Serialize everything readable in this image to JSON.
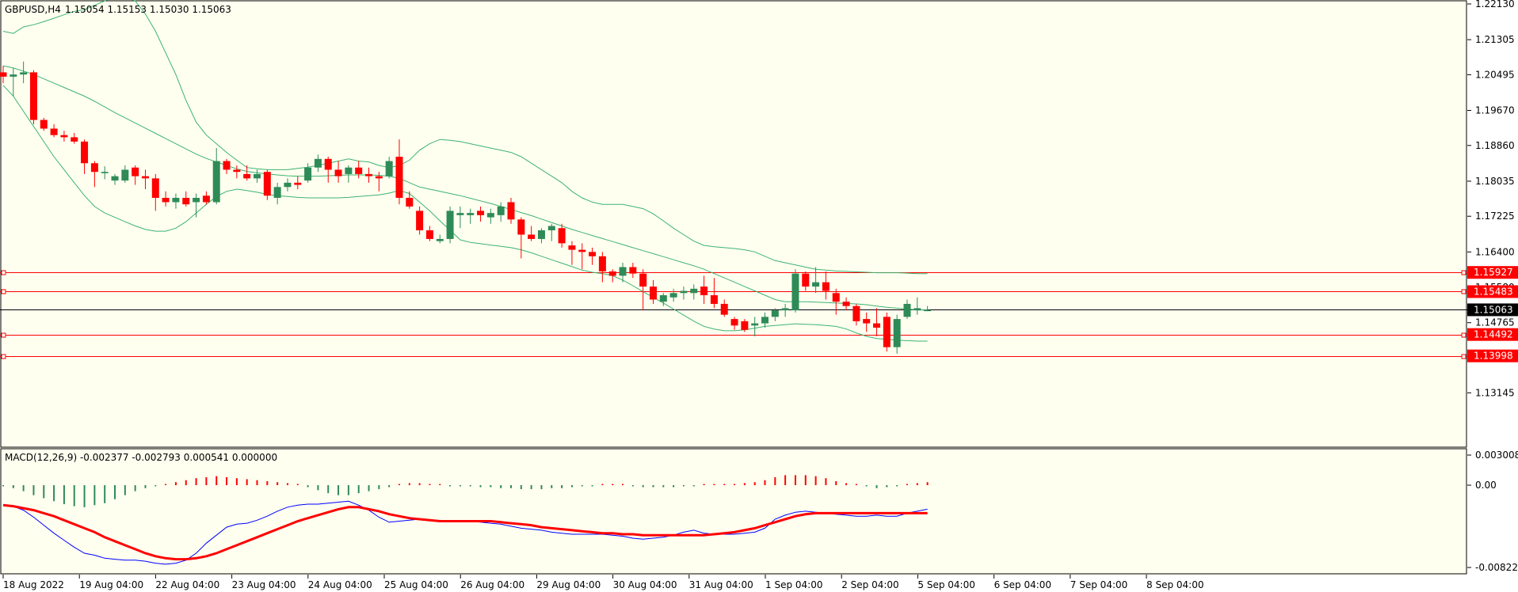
{
  "colors": {
    "background": "#fffff0",
    "bull": "#2e8b57",
    "bear": "#ff0000",
    "band": "#3cb371",
    "macd_line": "#0000ff",
    "signal_line": "#ff0000",
    "level": "#ff0000",
    "price_line": "#000000"
  },
  "header": {
    "symbol": "GBPUSD,H4",
    "ohlc": "1.15054 1.15153 1.15030 1.15063"
  },
  "macd_header": {
    "label": "MACD(12,26,9) -0.002377 -0.002793 0.000541 0.000000"
  },
  "chart_data": [
    {
      "type": "candlestick",
      "title": "GBPUSD,H4",
      "ylim": [
        1.122,
        1.2213
      ],
      "y_ticks": [
        "1.22130",
        "1.21305",
        "1.20495",
        "1.19670",
        "1.18860",
        "1.18035",
        "1.17225",
        "1.16400",
        "1.15580",
        "1.14765",
        "1.13145"
      ],
      "x_ticks": [
        "18 Aug 2022",
        "19 Aug 04:00",
        "22 Aug 04:00",
        "23 Aug 04:00",
        "24 Aug 04:00",
        "25 Aug 04:00",
        "26 Aug 04:00",
        "29 Aug 04:00",
        "30 Aug 04:00",
        "31 Aug 04:00",
        "1 Sep 04:00",
        "2 Sep 04:00",
        "5 Sep 04:00",
        "6 Sep 04:00",
        "7 Sep 04:00",
        "8 Sep 04:00"
      ],
      "current_price": "1.15063",
      "levels": [
        "1.15927",
        "1.15483",
        "1.14492",
        "1.13998"
      ],
      "candles": [
        [
          1.2055,
          1.207,
          1.203,
          1.2045
        ],
        [
          1.2045,
          1.2065,
          1.2,
          1.205
        ],
        [
          1.205,
          1.208,
          1.203,
          1.2055
        ],
        [
          1.2055,
          1.206,
          1.1935,
          1.1945
        ],
        [
          1.1945,
          1.195,
          1.192,
          1.1925
        ],
        [
          1.1925,
          1.1935,
          1.1905,
          1.191
        ],
        [
          1.191,
          1.192,
          1.1895,
          1.1905
        ],
        [
          1.1905,
          1.1915,
          1.189,
          1.1895
        ],
        [
          1.1895,
          1.19,
          1.182,
          1.1845
        ],
        [
          1.1845,
          1.185,
          1.179,
          1.1825
        ],
        [
          1.1822,
          1.1838,
          1.1808,
          1.1825
        ],
        [
          1.1805,
          1.182,
          1.1795,
          1.1815
        ],
        [
          1.1805,
          1.184,
          1.18,
          1.183
        ],
        [
          1.1835,
          1.184,
          1.1795,
          1.1815
        ],
        [
          1.1815,
          1.183,
          1.1785,
          1.181
        ],
        [
          1.181,
          1.182,
          1.1735,
          1.1765
        ],
        [
          1.1765,
          1.178,
          1.1745,
          1.1755
        ],
        [
          1.1755,
          1.1775,
          1.174,
          1.1765
        ],
        [
          1.1765,
          1.178,
          1.1745,
          1.175
        ],
        [
          1.1755,
          1.1775,
          1.172,
          1.1765
        ],
        [
          1.177,
          1.178,
          1.175,
          1.1755
        ],
        [
          1.1755,
          1.188,
          1.175,
          1.185
        ],
        [
          1.185,
          1.1855,
          1.182,
          1.183
        ],
        [
          1.183,
          1.184,
          1.181,
          1.1825
        ],
        [
          1.182,
          1.184,
          1.1805,
          1.181
        ],
        [
          1.181,
          1.183,
          1.18,
          1.182
        ],
        [
          1.1825,
          1.183,
          1.176,
          1.177
        ],
        [
          1.1765,
          1.18,
          1.175,
          1.179
        ],
        [
          1.179,
          1.181,
          1.178,
          1.18
        ],
        [
          1.18,
          1.1815,
          1.1785,
          1.1795
        ],
        [
          1.1805,
          1.1845,
          1.18,
          1.1835
        ],
        [
          1.1835,
          1.1865,
          1.1825,
          1.1855
        ],
        [
          1.1855,
          1.186,
          1.18,
          1.183
        ],
        [
          1.183,
          1.185,
          1.18,
          1.1815
        ],
        [
          1.182,
          1.184,
          1.18,
          1.1835
        ],
        [
          1.1835,
          1.185,
          1.181,
          1.182
        ],
        [
          1.182,
          1.1835,
          1.18,
          1.1815
        ],
        [
          1.1815,
          1.1825,
          1.178,
          1.181
        ],
        [
          1.1815,
          1.186,
          1.181,
          1.185
        ],
        [
          1.186,
          1.19,
          1.175,
          1.1765
        ],
        [
          1.1765,
          1.178,
          1.174,
          1.1745
        ],
        [
          1.1735,
          1.1745,
          1.168,
          1.169
        ],
        [
          1.169,
          1.17,
          1.1665,
          1.167
        ],
        [
          1.1665,
          1.168,
          1.166,
          1.167
        ],
        [
          1.167,
          1.1745,
          1.166,
          1.1735
        ],
        [
          1.1725,
          1.1745,
          1.1695,
          1.173
        ],
        [
          1.1725,
          1.174,
          1.1705,
          1.173
        ],
        [
          1.1735,
          1.1745,
          1.171,
          1.1725
        ],
        [
          1.172,
          1.174,
          1.1705,
          1.173
        ],
        [
          1.1725,
          1.1755,
          1.171,
          1.1745
        ],
        [
          1.1755,
          1.1765,
          1.1705,
          1.1715
        ],
        [
          1.1715,
          1.172,
          1.1625,
          1.168
        ],
        [
          1.168,
          1.17,
          1.1665,
          1.167
        ],
        [
          1.167,
          1.1695,
          1.166,
          1.169
        ],
        [
          1.169,
          1.1705,
          1.1665,
          1.17
        ],
        [
          1.1695,
          1.1705,
          1.165,
          1.166
        ],
        [
          1.1655,
          1.1665,
          1.161,
          1.1645
        ],
        [
          1.1645,
          1.166,
          1.16,
          1.164
        ],
        [
          1.164,
          1.165,
          1.161,
          1.163
        ],
        [
          1.163,
          1.164,
          1.157,
          1.1595
        ],
        [
          1.1595,
          1.16,
          1.157,
          1.1585
        ],
        [
          1.1585,
          1.1615,
          1.157,
          1.1605
        ],
        [
          1.1605,
          1.1615,
          1.158,
          1.159
        ],
        [
          1.159,
          1.16,
          1.1505,
          1.156
        ],
        [
          1.156,
          1.1575,
          1.152,
          1.153
        ],
        [
          1.1525,
          1.1545,
          1.1515,
          1.154
        ],
        [
          1.1535,
          1.1555,
          1.1525,
          1.1545
        ],
        [
          1.1545,
          1.156,
          1.153,
          1.155
        ],
        [
          1.1545,
          1.1565,
          1.153,
          1.1555
        ],
        [
          1.156,
          1.1585,
          1.152,
          1.154
        ],
        [
          1.154,
          1.158,
          1.151,
          1.152
        ],
        [
          1.152,
          1.153,
          1.149,
          1.1495
        ],
        [
          1.1485,
          1.149,
          1.146,
          1.147
        ],
        [
          1.148,
          1.1485,
          1.1455,
          1.146
        ],
        [
          1.147,
          1.149,
          1.1445,
          1.1475
        ],
        [
          1.1475,
          1.15,
          1.1465,
          1.149
        ],
        [
          1.149,
          1.151,
          1.148,
          1.1505
        ],
        [
          1.1505,
          1.152,
          1.149,
          1.151
        ],
        [
          1.1505,
          1.16,
          1.15,
          1.159
        ],
        [
          1.159,
          1.1595,
          1.155,
          1.156
        ],
        [
          1.156,
          1.1605,
          1.1545,
          1.157
        ],
        [
          1.157,
          1.1595,
          1.153,
          1.155
        ],
        [
          1.1545,
          1.1555,
          1.1495,
          1.1525
        ],
        [
          1.1525,
          1.1535,
          1.1505,
          1.1515
        ],
        [
          1.1515,
          1.152,
          1.147,
          1.148
        ],
        [
          1.1485,
          1.15,
          1.1455,
          1.1475
        ],
        [
          1.1475,
          1.151,
          1.1445,
          1.1465
        ],
        [
          1.149,
          1.15,
          1.141,
          1.142
        ],
        [
          1.142,
          1.1495,
          1.1405,
          1.1485
        ],
        [
          1.149,
          1.153,
          1.1485,
          1.152
        ],
        [
          1.1505,
          1.1535,
          1.1495,
          1.151
        ],
        [
          1.1505,
          1.1515,
          1.1503,
          1.1506
        ]
      ],
      "bollinger": {
        "upper": [
          1.215,
          1.2145,
          1.216,
          1.2165,
          1.2172,
          1.218,
          1.2188,
          1.2196,
          1.22,
          1.221,
          1.222,
          1.223,
          1.223,
          1.222,
          1.219,
          1.215,
          1.21,
          1.205,
          1.199,
          1.194,
          1.191,
          1.189,
          1.187,
          1.1852,
          1.1835,
          1.1832,
          1.183,
          1.183,
          1.183,
          1.1833,
          1.1836,
          1.184,
          1.1845,
          1.185,
          1.1855,
          1.185,
          1.1848,
          1.184,
          1.1835,
          1.184,
          1.1852,
          1.1875,
          1.189,
          1.19,
          1.1898,
          1.1895,
          1.189,
          1.1885,
          1.188,
          1.1875,
          1.187,
          1.186,
          1.1845,
          1.183,
          1.1815,
          1.18,
          1.178,
          1.1765,
          1.1755,
          1.175,
          1.175,
          1.175,
          1.1745,
          1.174,
          1.1728,
          1.1712,
          1.1695,
          1.168,
          1.1665,
          1.1655,
          1.1652,
          1.165,
          1.1648,
          1.1645,
          1.164,
          1.163,
          1.162,
          1.1615,
          1.161,
          1.1605,
          1.16,
          1.1598,
          1.1596,
          1.1595,
          1.1594,
          1.1593,
          1.1592,
          1.1592,
          1.1592,
          1.1591,
          1.159,
          1.159
        ],
        "middle": [
          1.207,
          1.2065,
          1.2058,
          1.205,
          1.204,
          1.203,
          1.202,
          1.201,
          1.2,
          1.1988,
          1.1975,
          1.1962,
          1.195,
          1.1938,
          1.1926,
          1.1914,
          1.1902,
          1.189,
          1.1878,
          1.1866,
          1.1856,
          1.1848,
          1.184,
          1.1832,
          1.1826,
          1.1823,
          1.182,
          1.1818,
          1.1816,
          1.1815,
          1.1815,
          1.1815,
          1.1816,
          1.1817,
          1.1818,
          1.1818,
          1.1818,
          1.1817,
          1.1815,
          1.181,
          1.18,
          1.179,
          1.1785,
          1.178,
          1.1775,
          1.177,
          1.1764,
          1.1758,
          1.1752,
          1.1745,
          1.1738,
          1.1731,
          1.1724,
          1.1716,
          1.1708,
          1.17,
          1.1692,
          1.1685,
          1.1678,
          1.1671,
          1.1664,
          1.1657,
          1.165,
          1.1643,
          1.1636,
          1.1629,
          1.1622,
          1.1615,
          1.1608,
          1.16,
          1.159,
          1.158,
          1.157,
          1.156,
          1.155,
          1.154,
          1.153,
          1.1525,
          1.1525,
          1.1525,
          1.1524,
          1.1523,
          1.1522,
          1.1521,
          1.152,
          1.1518,
          1.1515,
          1.1512,
          1.151,
          1.1508,
          1.1506,
          1.1506
        ],
        "lower": [
          1.2025,
          1.2,
          1.1965,
          1.193,
          1.1895,
          1.186,
          1.183,
          1.18,
          1.177,
          1.1745,
          1.173,
          1.172,
          1.171,
          1.17,
          1.1692,
          1.1688,
          1.1688,
          1.1695,
          1.171,
          1.173,
          1.175,
          1.1768,
          1.178,
          1.1785,
          1.1782,
          1.1778,
          1.1773,
          1.177,
          1.1768,
          1.1766,
          1.1765,
          1.1765,
          1.1765,
          1.1765,
          1.1766,
          1.1768,
          1.177,
          1.1772,
          1.1776,
          1.1782,
          1.1775,
          1.1755,
          1.1735,
          1.1712,
          1.169,
          1.1668,
          1.1662,
          1.1659,
          1.1656,
          1.1653,
          1.165,
          1.1645,
          1.1638,
          1.163,
          1.1622,
          1.1614,
          1.1606,
          1.1598,
          1.1593,
          1.159,
          1.1585,
          1.1575,
          1.1562,
          1.1548,
          1.1535,
          1.1522,
          1.1508,
          1.1494,
          1.148,
          1.1468,
          1.1462,
          1.1458,
          1.1458,
          1.146,
          1.1464,
          1.1468,
          1.147,
          1.1472,
          1.1474,
          1.1473,
          1.1472,
          1.147,
          1.1468,
          1.1462,
          1.1453,
          1.1445,
          1.144,
          1.1438,
          1.1436,
          1.1435,
          1.1434,
          1.1434
        ]
      }
    },
    {
      "type": "macd",
      "title": "MACD(12,26,9) -0.002377 -0.002793 0.000541 0.000000",
      "ylim": [
        -0.008225,
        0.003008
      ],
      "y_ticks": [
        "0.003008",
        "0.00",
        "-0.008225"
      ],
      "histogram": [
        -0.0001,
        -0.0003,
        -0.0006,
        -0.001,
        -0.0013,
        -0.0016,
        -0.0019,
        -0.0021,
        -0.0022,
        -0.002,
        -0.0018,
        -0.0014,
        -0.001,
        -0.0006,
        -0.0003,
        -0.0001,
        0.0001,
        0.0003,
        0.0005,
        0.0007,
        0.0008,
        0.0009,
        0.0008,
        0.0007,
        0.0006,
        0.0005,
        0.0004,
        0.0003,
        0.0002,
        0.0001,
        -0.0002,
        -0.0005,
        -0.0008,
        -0.001,
        -0.001,
        -0.0008,
        -0.0006,
        -0.0004,
        -0.0002,
        0.0001,
        0.0002,
        0.0002,
        0.0001,
        0.0,
        -0.0001,
        -0.0001,
        -0.0001,
        -0.0002,
        -0.0002,
        -0.0003,
        -0.0003,
        -0.0004,
        -0.0004,
        -0.0004,
        -0.0003,
        -0.0003,
        -0.0002,
        -0.0001,
        -0.0001,
        0.0,
        0.0,
        0.0,
        -0.0001,
        -0.0002,
        -0.0002,
        -0.0002,
        -0.0002,
        -0.0001,
        -0.0001,
        0.0,
        0.0001,
        0.0001,
        0.0001,
        0.0002,
        0.0003,
        0.0005,
        0.0008,
        0.001,
        0.001,
        0.001,
        0.0009,
        0.0007,
        0.0004,
        0.0002,
        0.0001,
        -0.0001,
        -0.0003,
        -0.0002,
        -0.0001,
        0.0001,
        0.0002,
        0.0003
      ],
      "macd": [
        -0.002,
        -0.0021,
        -0.0025,
        -0.0032,
        -0.004,
        -0.0048,
        -0.0055,
        -0.0062,
        -0.0068,
        -0.007,
        -0.0073,
        -0.0074,
        -0.0075,
        -0.0075,
        -0.0076,
        -0.0078,
        -0.0079,
        -0.0078,
        -0.0075,
        -0.0068,
        -0.0058,
        -0.005,
        -0.0042,
        -0.0039,
        -0.0038,
        -0.0035,
        -0.0031,
        -0.0026,
        -0.0022,
        -0.002,
        -0.0019,
        -0.0019,
        -0.0018,
        -0.0017,
        -0.0016,
        -0.002,
        -0.0025,
        -0.0032,
        -0.0037,
        -0.0036,
        -0.0035,
        -0.0034,
        -0.0035,
        -0.0036,
        -0.0036,
        -0.0036,
        -0.0036,
        -0.0037,
        -0.0038,
        -0.0039,
        -0.0041,
        -0.0043,
        -0.0044,
        -0.0045,
        -0.0047,
        -0.0048,
        -0.0049,
        -0.0049,
        -0.0049,
        -0.0049,
        -0.005,
        -0.0051,
        -0.0053,
        -0.0054,
        -0.0053,
        -0.0052,
        -0.005,
        -0.0047,
        -0.0045,
        -0.0048,
        -0.0049,
        -0.0049,
        -0.0049,
        -0.0048,
        -0.0047,
        -0.0043,
        -0.0034,
        -0.003,
        -0.0027,
        -0.0026,
        -0.0027,
        -0.0028,
        -0.0029,
        -0.003,
        -0.0031,
        -0.0031,
        -0.003,
        -0.0031,
        -0.0031,
        -0.0028,
        -0.0026,
        -0.0024
      ],
      "signal": [
        -0.002,
        -0.0021,
        -0.0023,
        -0.0025,
        -0.0028,
        -0.0031,
        -0.0035,
        -0.0039,
        -0.0043,
        -0.0047,
        -0.0052,
        -0.0056,
        -0.006,
        -0.0064,
        -0.0068,
        -0.0071,
        -0.0073,
        -0.0074,
        -0.0074,
        -0.0073,
        -0.0071,
        -0.0068,
        -0.0064,
        -0.006,
        -0.0056,
        -0.0052,
        -0.0048,
        -0.0044,
        -0.004,
        -0.0036,
        -0.0033,
        -0.003,
        -0.0027,
        -0.0024,
        -0.0022,
        -0.0022,
        -0.0024,
        -0.0026,
        -0.0029,
        -0.0031,
        -0.0033,
        -0.0034,
        -0.0035,
        -0.0036,
        -0.0036,
        -0.0036,
        -0.0036,
        -0.0036,
        -0.0036,
        -0.0037,
        -0.0038,
        -0.0039,
        -0.004,
        -0.0042,
        -0.0043,
        -0.0044,
        -0.0045,
        -0.0046,
        -0.0047,
        -0.0048,
        -0.0048,
        -0.0049,
        -0.0049,
        -0.005,
        -0.005,
        -0.005,
        -0.005,
        -0.005,
        -0.005,
        -0.005,
        -0.0049,
        -0.0048,
        -0.0047,
        -0.0045,
        -0.0043,
        -0.004,
        -0.0037,
        -0.0034,
        -0.0031,
        -0.0029,
        -0.0028,
        -0.0028,
        -0.0028,
        -0.0028,
        -0.0028,
        -0.0028,
        -0.0028,
        -0.0028,
        -0.0028,
        -0.0028,
        -0.0028,
        -0.0028
      ]
    }
  ]
}
